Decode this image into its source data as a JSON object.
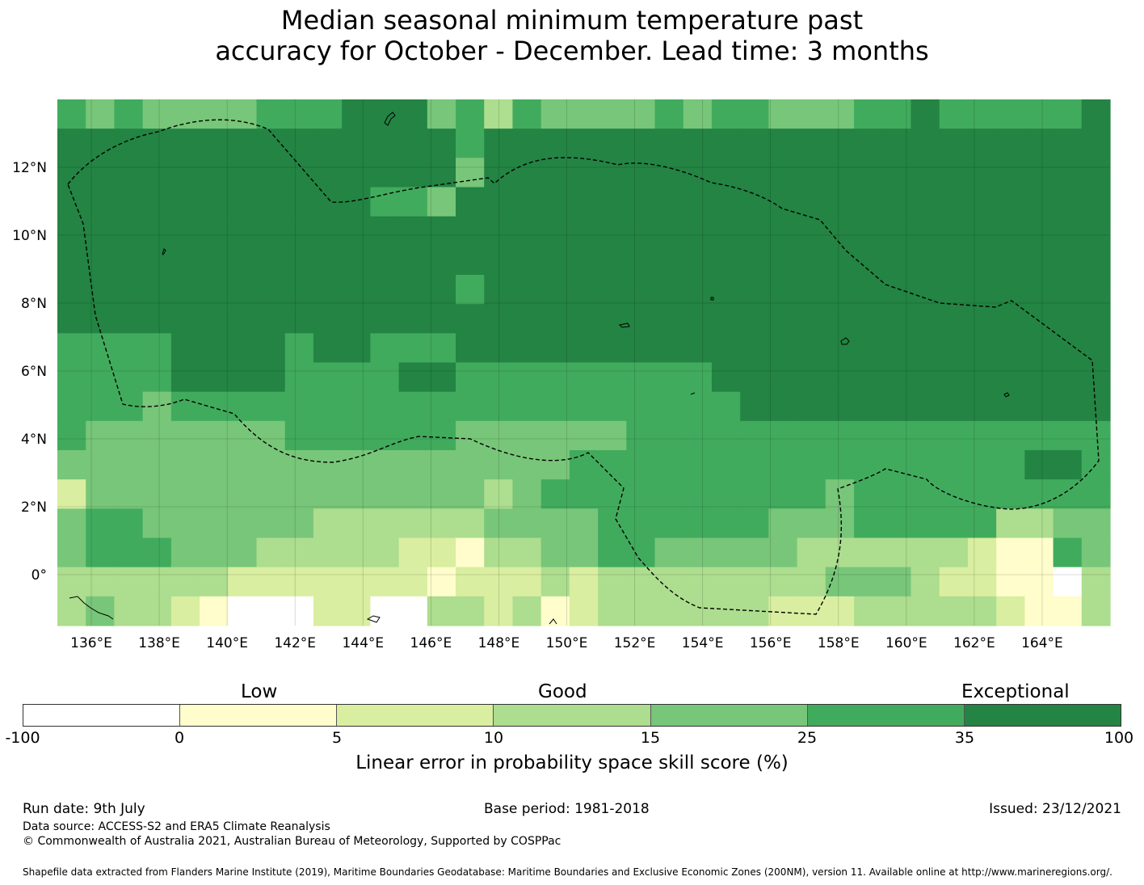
{
  "title": {
    "line1": "Median seasonal minimum temperature past",
    "line2": "accuracy for October - December. Lead time: 3 months"
  },
  "map": {
    "lon_labels": [
      "136°E",
      "138°E",
      "140°E",
      "142°E",
      "144°E",
      "146°E",
      "148°E",
      "150°E",
      "152°E",
      "154°E",
      "156°E",
      "158°E",
      "160°E",
      "162°E",
      "164°E"
    ],
    "lat_labels": [
      "12°N",
      "10°N",
      "8°N",
      "6°N",
      "4°N",
      "2°N",
      "0°"
    ],
    "lon_range": [
      135.0,
      166.0
    ],
    "lat_range": [
      -1.5,
      14.0
    ],
    "grid": true,
    "eez_boundary": "dashed",
    "colors": {
      "c0": "#ffffff",
      "c1": "#fefdcb",
      "c2": "#d9eea0",
      "c3": "#addd8e",
      "c4": "#78c679",
      "c5": "#41ab5d",
      "c6": "#238443"
    }
  },
  "colorbar": {
    "categories": [
      "Low",
      "Good",
      "Exceptional"
    ],
    "ticks": [
      "-100",
      "0",
      "5",
      "10",
      "15",
      "25",
      "35",
      "100"
    ],
    "colors": [
      "#ffffff",
      "#fefdcb",
      "#d9eea0",
      "#addd8e",
      "#78c679",
      "#41ab5d",
      "#238443"
    ],
    "label": "Linear error in probability space skill score (%)"
  },
  "footer": {
    "run_date": "Run date: 9th July",
    "base_period": "Base period: 1981-2018",
    "issued": "Issued: 23/12/2021",
    "data_source": "Data source: ACCESS-S2 and ERA5 Climate Reanalysis",
    "copyright": "© Commonwealth of Australia 2021, Australian Bureau of Meteorology, Supported by COSPPac",
    "shapefile": "Shapefile data extracted from Flanders Marine Institute (2019), Maritime Boundaries Geodatabase: Maritime Boundaries and Exclusive Economic Zones (200NM), version 11. Available online at http://www.marineregions.org/."
  }
}
